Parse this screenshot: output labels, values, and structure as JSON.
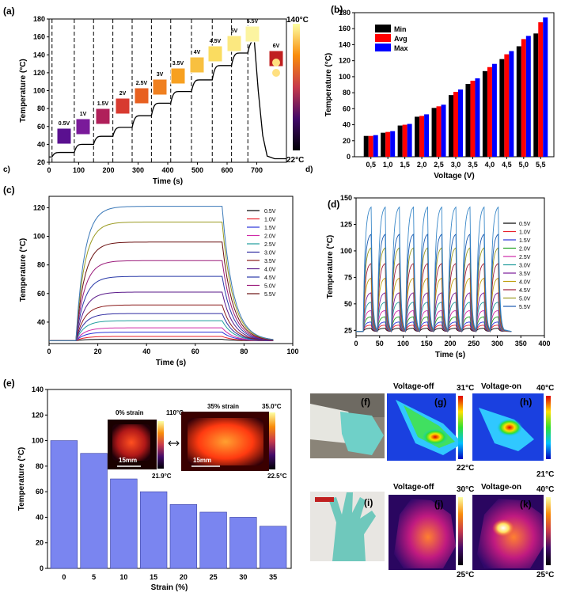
{
  "chart_data": [
    {
      "panel": "(a)",
      "type": "line",
      "xlabel": "Time (s)",
      "ylabel": "Temperature (°C)",
      "xlim": [
        0,
        800
      ],
      "ylim": [
        20,
        180
      ],
      "xticks": [
        0,
        100,
        200,
        300,
        400,
        500,
        600,
        700
      ],
      "yticks": [
        20,
        40,
        60,
        80,
        100,
        120,
        140,
        160,
        180
      ],
      "step_labels": [
        "0.5V",
        "1V",
        "1.5V",
        "2V",
        "2.5V",
        "3V",
        "3.5V",
        "4V",
        "4.5V",
        "5V",
        "5.5V",
        "6V"
      ],
      "step_boundaries": [
        10,
        85,
        150,
        215,
        280,
        345,
        410,
        480,
        550,
        615,
        670
      ],
      "plateaus": [
        {
          "t": 0,
          "v": 26
        },
        {
          "t": 10,
          "v": 31
        },
        {
          "t": 85,
          "v": 40
        },
        {
          "t": 150,
          "v": 49
        },
        {
          "t": 215,
          "v": 59
        },
        {
          "t": 280,
          "v": 72
        },
        {
          "t": 345,
          "v": 86
        },
        {
          "t": 410,
          "v": 99
        },
        {
          "t": 480,
          "v": 112
        },
        {
          "t": 550,
          "v": 128
        },
        {
          "t": 615,
          "v": 142
        },
        {
          "t": 670,
          "v": 156
        },
        {
          "t": 690,
          "v": 163
        },
        {
          "t": 705,
          "v": 100
        },
        {
          "t": 720,
          "v": 50
        },
        {
          "t": 735,
          "v": 27
        },
        {
          "t": 760,
          "v": 24
        }
      ],
      "colorbar_max": "140°C",
      "colorbar_min": "22°C",
      "corner_left": "c)",
      "corner_right": "d)"
    },
    {
      "panel": "(b)",
      "type": "bar",
      "xlabel": "Voltage (V)",
      "ylabel": "Temperature (°C)",
      "categories": [
        "0,5",
        "1,0",
        "1,5",
        "2,0",
        "2,5",
        "3,0",
        "3,5",
        "4,0",
        "4,5",
        "5,0",
        "5,5"
      ],
      "series": [
        {
          "name": "Min",
          "color": "#000000",
          "values": [
            26,
            30,
            39,
            50,
            61,
            77,
            91,
            107,
            122,
            138,
            154
          ]
        },
        {
          "name": "Avg",
          "color": "#ff0000",
          "values": [
            26,
            31,
            40,
            51,
            63,
            81,
            95,
            112,
            128,
            147,
            168
          ]
        },
        {
          "name": "Max",
          "color": "#0000ff",
          "values": [
            27,
            32,
            41,
            53,
            65,
            84,
            98,
            116,
            132,
            151,
            174
          ]
        }
      ],
      "ylim": [
        0,
        180
      ],
      "yticks": [
        0,
        20,
        40,
        60,
        80,
        100,
        120,
        140,
        160,
        180
      ]
    },
    {
      "panel": "(c)",
      "type": "line",
      "xlabel": "Time (s)",
      "ylabel": "Temperature (°C)",
      "xlim": [
        0,
        100
      ],
      "ylim": [
        25,
        128
      ],
      "xticks": [
        0,
        20,
        40,
        60,
        80,
        100
      ],
      "yticks": [
        40,
        60,
        80,
        100,
        120
      ],
      "heat_on": 11,
      "heat_off": 71,
      "end": 92,
      "baseline": 27,
      "series": [
        {
          "name": "0.5V",
          "color": "#000000",
          "plateau": 28
        },
        {
          "name": "1.0V",
          "color": "#e8202a",
          "plateau": 30
        },
        {
          "name": "1.5V",
          "color": "#2a32d8",
          "plateau": 33
        },
        {
          "name": "2.0V",
          "color": "#cf2aa8",
          "plateau": 36
        },
        {
          "name": "2.5V",
          "color": "#1f9c9c",
          "plateau": 41
        },
        {
          "name": "3.0V",
          "color": "#2e2aa0",
          "plateau": 46
        },
        {
          "name": "3.5V",
          "color": "#8a1a1a",
          "plateau": 52
        },
        {
          "name": "4.0V",
          "color": "#5a1a8a",
          "plateau": 61
        },
        {
          "name": "4.5V",
          "color": "#2a3aa8",
          "plateau": 72
        },
        {
          "name": "5.0V",
          "color": "#9a1a7a",
          "plateau": 83
        },
        {
          "name": "5.5V",
          "color": "#6a1010",
          "plateau": 96
        },
        {
          "name": "",
          "color": "#9a9a20",
          "plateau": 110
        },
        {
          "name": "",
          "color": "#3a78b8",
          "plateau": 121
        }
      ],
      "legend_labels": [
        "0.5V",
        "1.0V",
        "1.5V",
        "2.0V",
        "2.5V",
        "3.0V",
        "3.5V",
        "4.0V",
        "4.5V",
        "5.0V",
        "5.5V"
      ]
    },
    {
      "panel": "(d)",
      "type": "line",
      "xlabel": "Time (s)",
      "ylabel": "Temperature (°C)",
      "xlim": [
        0,
        400
      ],
      "ylim": [
        20,
        150
      ],
      "xticks": [
        0,
        50,
        100,
        150,
        200,
        250,
        300,
        350,
        400
      ],
      "yticks": [
        25,
        50,
        75,
        100,
        125,
        150
      ],
      "cycle_start": 15,
      "cycle_period": 30,
      "cycles": 10,
      "baseline": 24,
      "series": [
        {
          "name": "0.5V",
          "color": "#000000",
          "peak": 27
        },
        {
          "name": "1.0V",
          "color": "#e8202a",
          "peak": 30
        },
        {
          "name": "1.5V",
          "color": "#2a32d8",
          "peak": 33
        },
        {
          "name": "2.0V",
          "color": "#20a020",
          "peak": 38
        },
        {
          "name": "2.5V",
          "color": "#cf2aa8",
          "peak": 44
        },
        {
          "name": "3.0V",
          "color": "#1f9c9c",
          "peak": 52
        },
        {
          "name": "3.5V",
          "color": "#7a1a9a",
          "peak": 61
        },
        {
          "name": "4.0V",
          "color": "#c0a010",
          "peak": 75
        },
        {
          "name": "4.5V",
          "color": "#a01a3a",
          "peak": 89
        },
        {
          "name": "5.0V",
          "color": "#9a9a20",
          "peak": 104
        },
        {
          "name": "5.5V",
          "color": "#1a5ab0",
          "peak": 117
        },
        {
          "name": "",
          "color": "#3a88c8",
          "peak": 143
        }
      ],
      "legend_labels": [
        "0.5V",
        "1.0V",
        "1.5V",
        "2.0V",
        "2.5V",
        "3.0V",
        "3.5V",
        "4.0V",
        "4.5V",
        "5.0V",
        "5.5V"
      ]
    },
    {
      "panel": "(e)",
      "type": "bar",
      "xlabel": "Strain (%)",
      "ylabel": "Temperature (°C)",
      "categories": [
        "0",
        "5",
        "10",
        "15",
        "20",
        "25",
        "30",
        "35"
      ],
      "values": [
        100,
        90,
        70,
        60,
        50,
        44,
        40,
        33
      ],
      "ylim": [
        0,
        140
      ],
      "yticks": [
        0,
        20,
        40,
        60,
        80,
        100,
        120,
        140
      ],
      "bar_color": "#7a85f0"
    }
  ],
  "panels": {
    "a": "(a)",
    "b": "(b)",
    "c": "(c)",
    "d": "(d)",
    "e": "(e)",
    "f": "(f)",
    "g": "(g)",
    "h": "(h)",
    "i": "(i)",
    "j": "(j)",
    "k": "(k)"
  },
  "inset_e": {
    "left_title": "0% strain",
    "left_max": "110°C",
    "left_min": "21.9°C",
    "left_scale": "15mm",
    "right_title": "35% strain",
    "right_max": "35.0°C",
    "right_min": "22.5°C",
    "right_scale": "15mm"
  },
  "thermal": {
    "g_title": "Voltage-off",
    "g_max": "31°C",
    "g_min": "22°C",
    "h_title": "Voltage-on",
    "h_max": "40°C",
    "h_min": "21°C",
    "j_title": "Voltage-off",
    "j_max": "30°C",
    "j_min": "25°C",
    "k_title": "Voltage-on",
    "k_max": "40°C",
    "k_min": "25°C"
  }
}
